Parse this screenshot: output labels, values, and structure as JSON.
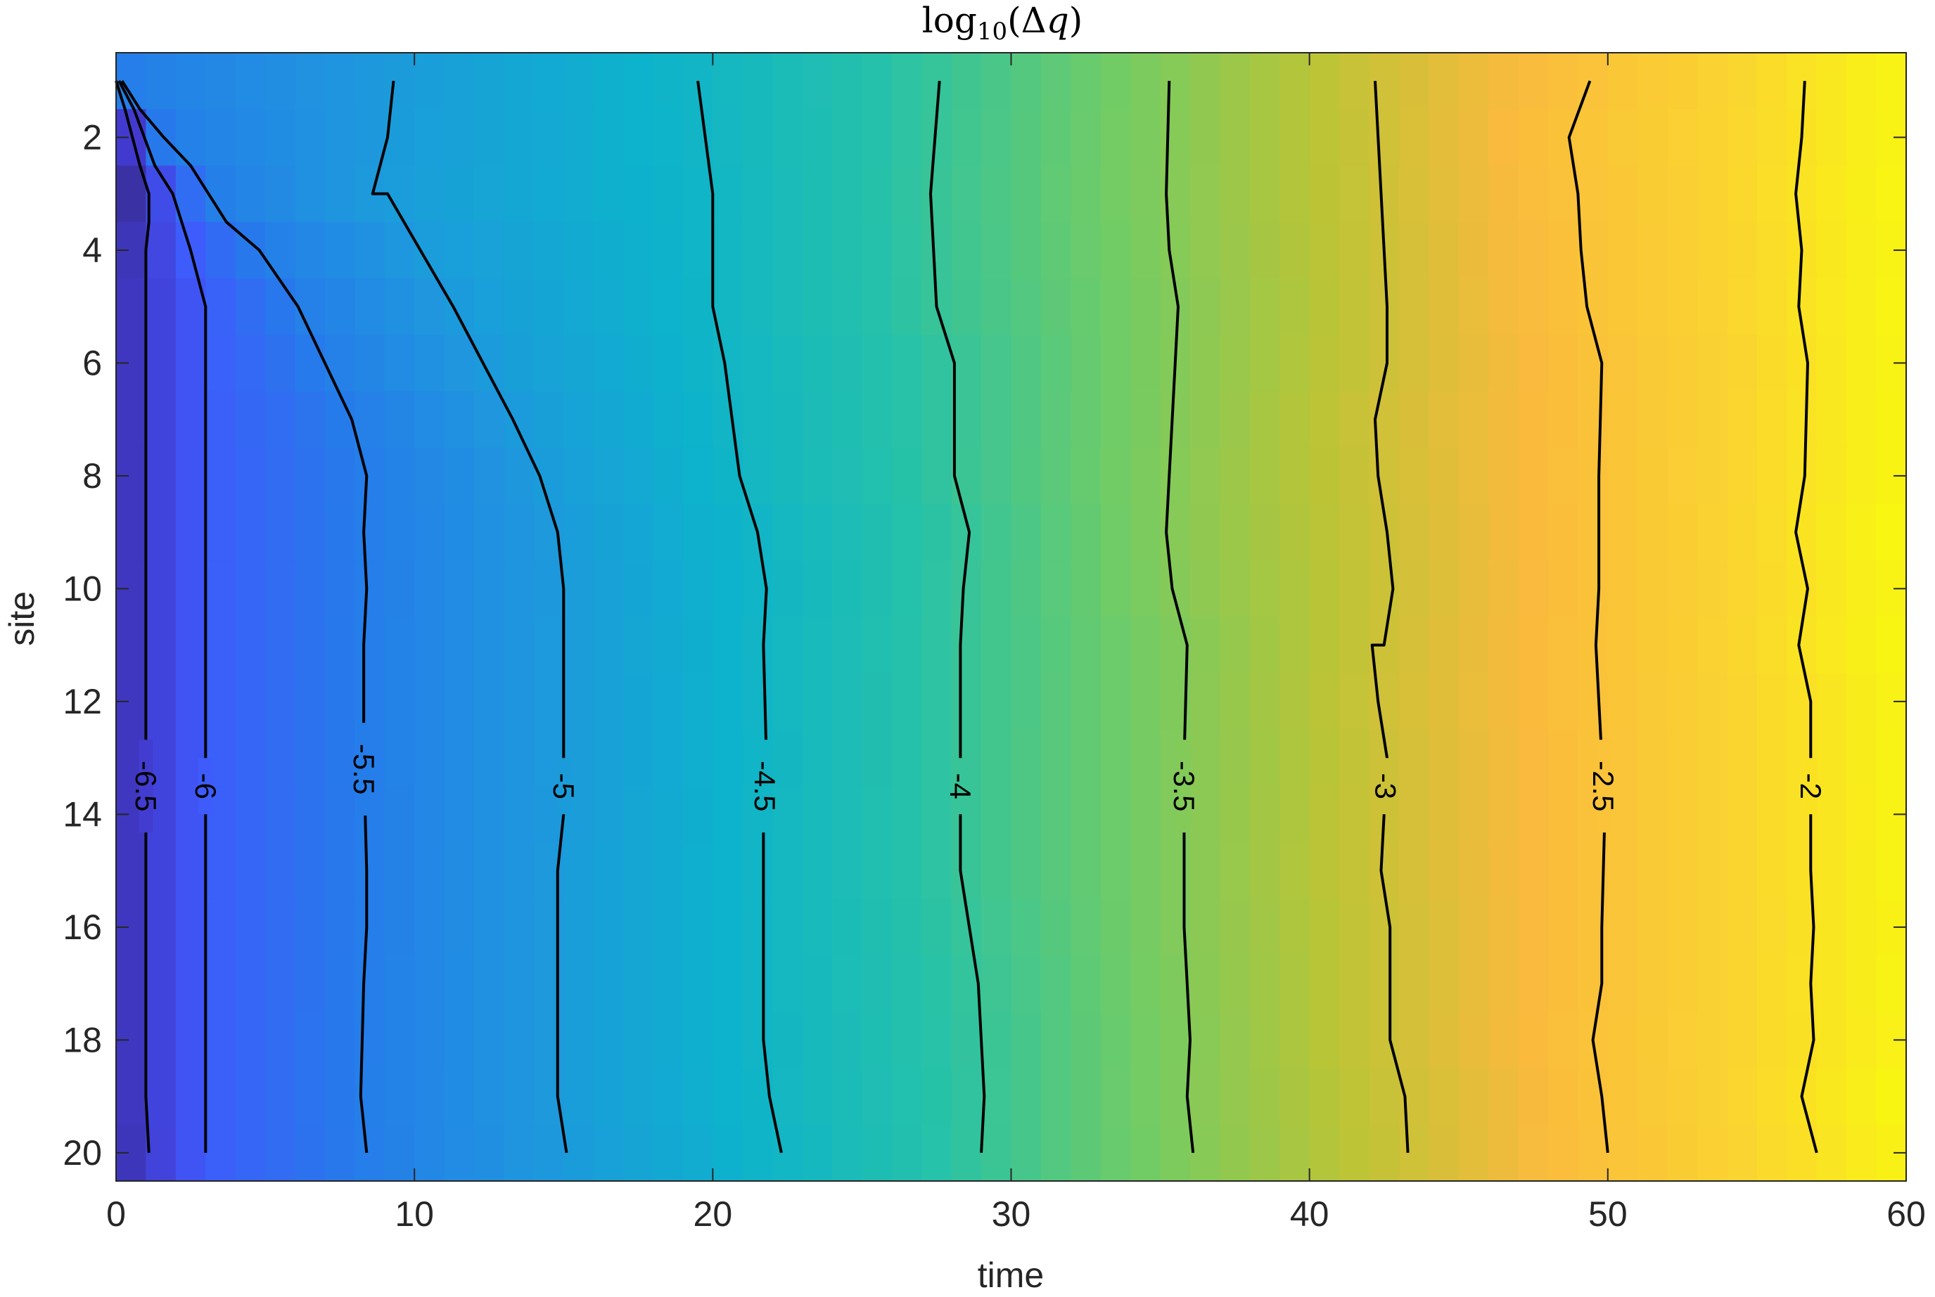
{
  "chart_data": {
    "type": "heatmap",
    "title": {
      "prefix": "log",
      "subscript": "10",
      "open": "(Δ",
      "var": "q",
      "close": ")"
    },
    "xlabel": "time",
    "ylabel": "site",
    "xlim": [
      0,
      60
    ],
    "ylim": [
      0.5,
      20.5
    ],
    "y_direction": "reversed",
    "x_ticks": [
      0,
      10,
      20,
      30,
      40,
      50,
      60
    ],
    "y_ticks": [
      2,
      4,
      6,
      8,
      10,
      12,
      14,
      16,
      18,
      20
    ],
    "x_tick_labels": [
      "0",
      "10",
      "20",
      "30",
      "40",
      "50",
      "60"
    ],
    "y_tick_labels": [
      "2",
      "4",
      "6",
      "8",
      "10",
      "12",
      "14",
      "16",
      "18",
      "20"
    ],
    "colormap": "parula",
    "color_range": [
      -7,
      -1.7
    ],
    "grid": false,
    "contour_levels": [
      {
        "level": -6.5,
        "label": "-6.5",
        "label_site": 13.5,
        "points": [
          [
            0,
            1
          ],
          [
            0.3,
            1.5
          ],
          [
            0.8,
            2.5
          ],
          [
            1.1,
            3
          ],
          [
            1.1,
            3.5
          ],
          [
            1,
            4
          ],
          [
            1,
            6
          ],
          [
            1,
            10
          ],
          [
            1,
            13
          ],
          [
            1,
            16
          ],
          [
            1,
            19
          ],
          [
            1.1,
            20
          ]
        ]
      },
      {
        "level": -6,
        "label": "-6",
        "label_site": 13.5,
        "points": [
          [
            0.1,
            1
          ],
          [
            0.6,
            1.5
          ],
          [
            1.3,
            2.5
          ],
          [
            1.9,
            3
          ],
          [
            2.2,
            3.5
          ],
          [
            2.5,
            4
          ],
          [
            3,
            5
          ],
          [
            3,
            8
          ],
          [
            3,
            11
          ],
          [
            3,
            13
          ],
          [
            3,
            16
          ],
          [
            3,
            19
          ],
          [
            3,
            20
          ]
        ]
      },
      {
        "level": -5.5,
        "label": "-5.5",
        "label_site": 13.2,
        "points": [
          [
            0.2,
            1
          ],
          [
            0.8,
            1.5
          ],
          [
            1.6,
            2
          ],
          [
            2.5,
            2.5
          ],
          [
            3.7,
            3.5
          ],
          [
            4.8,
            4
          ],
          [
            6.1,
            5
          ],
          [
            7,
            6
          ],
          [
            7.9,
            7
          ],
          [
            8.4,
            8
          ],
          [
            8.3,
            9
          ],
          [
            8.4,
            10
          ],
          [
            8.3,
            11
          ],
          [
            8.3,
            13
          ],
          [
            8.4,
            15
          ],
          [
            8.4,
            16
          ],
          [
            8.3,
            17
          ],
          [
            8.2,
            19
          ],
          [
            8.4,
            20
          ]
        ]
      },
      {
        "level": -5,
        "label": "-5",
        "label_site": 13.5,
        "points": [
          [
            9.3,
            1
          ],
          [
            9.1,
            2
          ],
          [
            8.6,
            3
          ],
          [
            9.1,
            3
          ],
          [
            10.2,
            4
          ],
          [
            11.3,
            5
          ],
          [
            12.3,
            6
          ],
          [
            13.3,
            7
          ],
          [
            14.2,
            8
          ],
          [
            14.8,
            9
          ],
          [
            15,
            10
          ],
          [
            15,
            11
          ],
          [
            15,
            13
          ],
          [
            15,
            14
          ],
          [
            14.8,
            15
          ],
          [
            14.8,
            17
          ],
          [
            14.8,
            19
          ],
          [
            15.1,
            20
          ]
        ]
      },
      {
        "level": -4.5,
        "label": "-4.5",
        "label_site": 13.5,
        "points": [
          [
            19.5,
            1
          ],
          [
            20,
            3
          ],
          [
            20,
            5
          ],
          [
            20.4,
            6
          ],
          [
            20.9,
            8
          ],
          [
            21.5,
            9
          ],
          [
            21.8,
            10
          ],
          [
            21.7,
            11
          ],
          [
            21.8,
            13
          ],
          [
            21.7,
            14
          ],
          [
            21.7,
            16
          ],
          [
            21.7,
            18
          ],
          [
            21.9,
            19
          ],
          [
            22.3,
            20
          ]
        ]
      },
      {
        "level": -4,
        "label": "-4",
        "label_site": 13.5,
        "points": [
          [
            27.6,
            1
          ],
          [
            27.3,
            3
          ],
          [
            27.5,
            5
          ],
          [
            28.1,
            6
          ],
          [
            28.1,
            8
          ],
          [
            28.6,
            9
          ],
          [
            28.4,
            10
          ],
          [
            28.3,
            11
          ],
          [
            28.3,
            13
          ],
          [
            28.3,
            14
          ],
          [
            28.3,
            15
          ],
          [
            28.6,
            16
          ],
          [
            28.9,
            17
          ],
          [
            29.1,
            19
          ],
          [
            29,
            20
          ]
        ]
      },
      {
        "level": -3.5,
        "label": "-3.5",
        "label_site": 13.5,
        "points": [
          [
            35.3,
            1
          ],
          [
            35.2,
            3
          ],
          [
            35.3,
            4
          ],
          [
            35.6,
            5
          ],
          [
            35.5,
            6
          ],
          [
            35.3,
            8
          ],
          [
            35.2,
            9
          ],
          [
            35.4,
            10
          ],
          [
            35.9,
            11
          ],
          [
            35.8,
            13
          ],
          [
            35.8,
            14
          ],
          [
            35.8,
            16
          ],
          [
            35.9,
            17
          ],
          [
            36,
            18
          ],
          [
            35.9,
            19
          ],
          [
            36.1,
            20
          ]
        ]
      },
      {
        "level": -3,
        "label": "-3",
        "label_site": 13.5,
        "points": [
          [
            42.2,
            1
          ],
          [
            42.4,
            3
          ],
          [
            42.6,
            5
          ],
          [
            42.6,
            6
          ],
          [
            42.2,
            7
          ],
          [
            42.3,
            8
          ],
          [
            42.6,
            9
          ],
          [
            42.8,
            10
          ],
          [
            42.5,
            11
          ],
          [
            42.1,
            11
          ],
          [
            42.3,
            12
          ],
          [
            42.6,
            13
          ],
          [
            42.4,
            15
          ],
          [
            42.7,
            16
          ],
          [
            42.7,
            18
          ],
          [
            43.2,
            19
          ],
          [
            43.3,
            20
          ]
        ]
      },
      {
        "level": -2.5,
        "label": "-2.5",
        "label_site": 13.5,
        "points": [
          [
            49.4,
            1
          ],
          [
            48.7,
            2
          ],
          [
            49,
            3
          ],
          [
            49.1,
            4
          ],
          [
            49.3,
            5
          ],
          [
            49.8,
            6
          ],
          [
            49.7,
            8
          ],
          [
            49.7,
            10
          ],
          [
            49.6,
            11
          ],
          [
            49.8,
            13
          ],
          [
            49.9,
            14
          ],
          [
            49.8,
            16
          ],
          [
            49.8,
            17
          ],
          [
            49.5,
            18
          ],
          [
            49.8,
            19
          ],
          [
            50,
            20
          ]
        ]
      },
      {
        "level": -2,
        "label": "-2",
        "label_site": 13.5,
        "points": [
          [
            56.6,
            1
          ],
          [
            56.5,
            2
          ],
          [
            56.3,
            3
          ],
          [
            56.5,
            4
          ],
          [
            56.4,
            5
          ],
          [
            56.7,
            6
          ],
          [
            56.6,
            8
          ],
          [
            56.3,
            9
          ],
          [
            56.7,
            10
          ],
          [
            56.4,
            11
          ],
          [
            56.8,
            12
          ],
          [
            56.8,
            13
          ],
          [
            56.8,
            15
          ],
          [
            56.9,
            16
          ],
          [
            56.8,
            17
          ],
          [
            56.9,
            18
          ],
          [
            56.5,
            19
          ],
          [
            57,
            20
          ]
        ]
      }
    ]
  }
}
